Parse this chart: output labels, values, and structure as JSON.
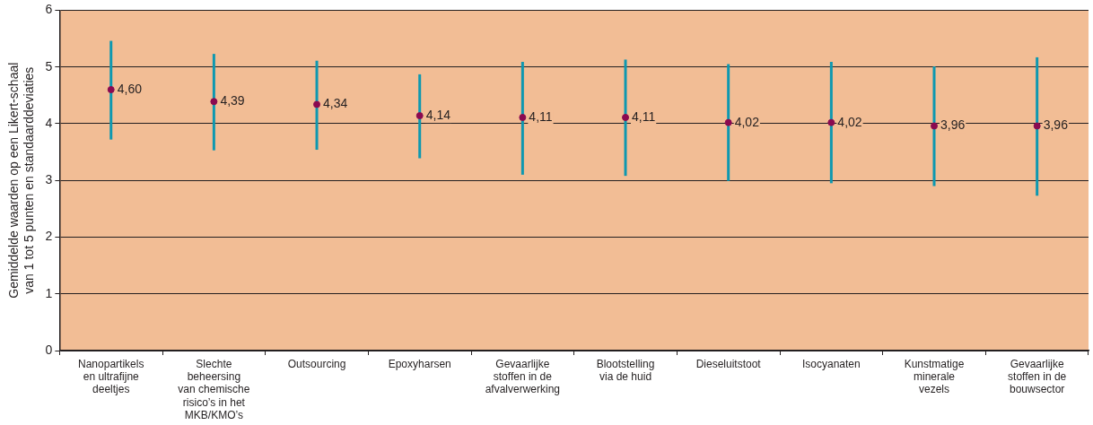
{
  "chart_data": {
    "type": "scatter",
    "ylabel": "Gemiddelde waarden op een Likert-schaal van 1 tot 5 punten en standaarddeviaties",
    "categories": [
      "Nanopartikels en ultrafijne deeltjes",
      "Slechte beheersing van chemische risico’s in het MKB/KMO’s",
      "Outsourcing",
      "Epoxyharsen",
      "Gevaarlijke stoffen in de afvalverwerking",
      "Blootstelling via de huid",
      "Dieseluitstoot",
      "Isocyanaten",
      "Kunstmatige minerale vezels",
      "Gevaarlijke stoffen in de bouwsector"
    ],
    "series": [
      {
        "color": "#8b0a50",
        "values": [
          4.6,
          4.39,
          4.34,
          4.14,
          4.11,
          4.11,
          4.02,
          4.02,
          3.96,
          3.96
        ],
        "value_labels": [
          "4,60",
          "4,39",
          "4,34",
          "4,14",
          "4,11",
          "4,11",
          "4,02",
          "4,02",
          "3,96",
          "3,96"
        ],
        "errors": [
          [
            3.72,
            5.46
          ],
          [
            3.53,
            5.23
          ],
          [
            3.54,
            5.11
          ],
          [
            3.39,
            4.87
          ],
          [
            3.1,
            5.09
          ],
          [
            3.08,
            5.13
          ],
          [
            2.99,
            5.05
          ],
          [
            2.95,
            5.09
          ],
          [
            2.9,
            5.01
          ],
          [
            2.73,
            5.17
          ]
        ]
      }
    ],
    "ylim": [
      0,
      6
    ],
    "yticks": [
      0,
      1,
      2,
      3,
      4,
      5,
      6
    ],
    "grid": "y",
    "legend": false,
    "marker": "circle"
  }
}
